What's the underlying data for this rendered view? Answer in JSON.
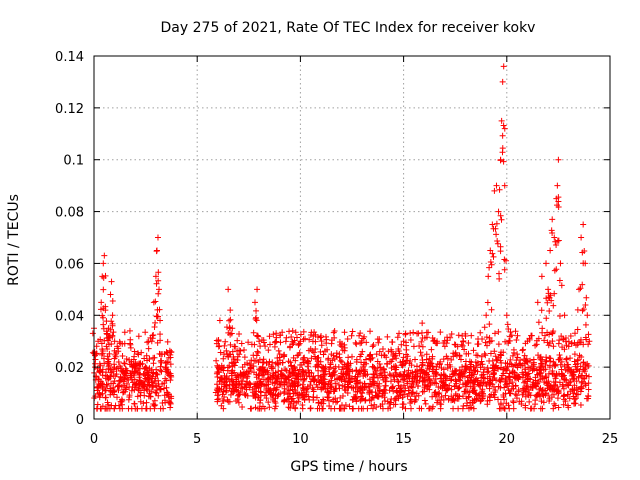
{
  "chart_data": {
    "type": "scatter",
    "title": "Day 275 of 2021, Rate Of TEC Index for receiver kokv",
    "xlabel": "GPS time / hours",
    "ylabel": "ROTI / TECUs",
    "xlim": [
      0,
      25
    ],
    "ylim": [
      0,
      0.14
    ],
    "x_ticks": [
      0,
      5,
      10,
      15,
      20,
      25
    ],
    "x_tick_labels": [
      "0",
      "5",
      "10",
      "15",
      "20",
      "25"
    ],
    "y_ticks": [
      0,
      0.02,
      0.04,
      0.06,
      0.08,
      0.1,
      0.12,
      0.14
    ],
    "y_tick_labels": [
      "0",
      "0.02",
      "0.04",
      "0.06",
      "0.08",
      "0.1",
      "0.12",
      "0.14"
    ],
    "grid": true,
    "marker": "+",
    "color": "#ff0000",
    "data_gap_hours": [
      3.75,
      5.9
    ],
    "series": [
      {
        "name": "ROTI",
        "points": [
          [
            0.0,
            0.035
          ],
          [
            0.05,
            0.02
          ],
          [
            0.1,
            0.025
          ],
          [
            0.15,
            0.012
          ],
          [
            0.2,
            0.03
          ],
          [
            0.3,
            0.018
          ],
          [
            0.35,
            0.045
          ],
          [
            0.4,
            0.055
          ],
          [
            0.45,
            0.06
          ],
          [
            0.5,
            0.063
          ],
          [
            0.55,
            0.042
          ],
          [
            0.6,
            0.028
          ],
          [
            0.7,
            0.035
          ],
          [
            0.8,
            0.048
          ],
          [
            0.85,
            0.053
          ],
          [
            0.9,
            0.04
          ],
          [
            1.0,
            0.03
          ],
          [
            1.2,
            0.022
          ],
          [
            1.5,
            0.018
          ],
          [
            1.8,
            0.021
          ],
          [
            2.2,
            0.017
          ],
          [
            2.5,
            0.02
          ],
          [
            2.8,
            0.03
          ],
          [
            2.9,
            0.045
          ],
          [
            3.0,
            0.055
          ],
          [
            3.05,
            0.065
          ],
          [
            3.1,
            0.07
          ],
          [
            3.15,
            0.05
          ],
          [
            3.2,
            0.038
          ],
          [
            3.3,
            0.025
          ],
          [
            3.5,
            0.02
          ],
          [
            3.7,
            0.015
          ],
          [
            6.0,
            0.02
          ],
          [
            6.1,
            0.038
          ],
          [
            6.3,
            0.025
          ],
          [
            6.5,
            0.05
          ],
          [
            6.6,
            0.042
          ],
          [
            6.7,
            0.035
          ],
          [
            6.8,
            0.028
          ],
          [
            7.2,
            0.02
          ],
          [
            7.8,
            0.045
          ],
          [
            7.9,
            0.05
          ],
          [
            8.0,
            0.03
          ],
          [
            8.5,
            0.022
          ],
          [
            9.0,
            0.025
          ],
          [
            9.5,
            0.028
          ],
          [
            10.0,
            0.03
          ],
          [
            10.5,
            0.027
          ],
          [
            11.0,
            0.032
          ],
          [
            11.5,
            0.025
          ],
          [
            12.0,
            0.028
          ],
          [
            12.5,
            0.024
          ],
          [
            13.0,
            0.026
          ],
          [
            13.5,
            0.028
          ],
          [
            14.0,
            0.027
          ],
          [
            14.5,
            0.025
          ],
          [
            15.0,
            0.03
          ],
          [
            15.5,
            0.028
          ],
          [
            15.9,
            0.037
          ],
          [
            16.5,
            0.03
          ],
          [
            17.0,
            0.028
          ],
          [
            17.5,
            0.025
          ],
          [
            18.0,
            0.032
          ],
          [
            18.5,
            0.022
          ],
          [
            19.0,
            0.04
          ],
          [
            19.1,
            0.055
          ],
          [
            19.2,
            0.065
          ],
          [
            19.3,
            0.075
          ],
          [
            19.4,
            0.088
          ],
          [
            19.5,
            0.09
          ],
          [
            19.6,
            0.08
          ],
          [
            19.7,
            0.1
          ],
          [
            19.75,
            0.115
          ],
          [
            19.8,
            0.13
          ],
          [
            19.85,
            0.136
          ],
          [
            19.9,
            0.09
          ],
          [
            20.0,
            0.04
          ],
          [
            20.5,
            0.025
          ],
          [
            21.0,
            0.03
          ],
          [
            21.5,
            0.045
          ],
          [
            21.7,
            0.055
          ],
          [
            21.9,
            0.06
          ],
          [
            22.0,
            0.05
          ],
          [
            22.1,
            0.065
          ],
          [
            22.2,
            0.077
          ],
          [
            22.3,
            0.07
          ],
          [
            22.4,
            0.085
          ],
          [
            22.45,
            0.09
          ],
          [
            22.5,
            0.1
          ],
          [
            22.6,
            0.06
          ],
          [
            22.8,
            0.04
          ],
          [
            23.0,
            0.028
          ],
          [
            23.3,
            0.025
          ],
          [
            23.5,
            0.05
          ],
          [
            23.6,
            0.07
          ],
          [
            23.7,
            0.075
          ],
          [
            23.8,
            0.06
          ],
          [
            23.9,
            0.04
          ],
          [
            24.0,
            0.03
          ]
        ],
        "baseline_hours": [
          [
            0.0,
            3.75
          ],
          [
            5.9,
            24.0
          ]
        ],
        "baseline_typical": 0.015,
        "baseline_min": 0.004,
        "baseline_max": 0.028
      }
    ]
  }
}
